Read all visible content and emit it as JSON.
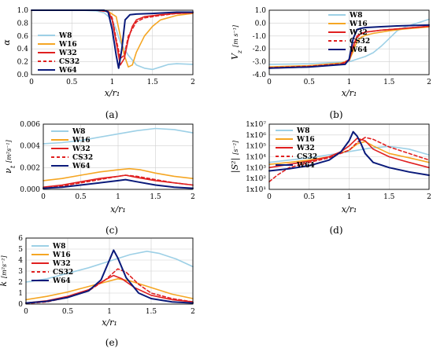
{
  "chart_data": [
    {
      "type": "line",
      "panel_label": "(a)",
      "ylabel": "α",
      "ylabel_unit": "",
      "xlabel": "x/r₁",
      "xlim": [
        0,
        2
      ],
      "ylim": [
        0,
        1.0
      ],
      "yscale": "linear",
      "xticks": [
        0,
        0.5,
        1,
        1.5,
        2
      ],
      "xtick_labels": [
        "0",
        "0.5",
        "1",
        "1.5",
        "2"
      ],
      "yticks": [
        0,
        0.2,
        0.4,
        0.6,
        0.8,
        1.0
      ],
      "ytick_labels": [
        "0.0",
        "0.2",
        "0.4",
        "0.6",
        "0.8",
        "1.0"
      ],
      "grid": true,
      "legend_position": "left",
      "series": [
        {
          "name": "W8",
          "color": "#9dd0e6",
          "dash": "solid",
          "x": [
            0,
            0.6,
            0.8,
            0.9,
            1.0,
            1.05,
            1.1,
            1.2,
            1.3,
            1.4,
            1.5,
            1.6,
            1.7,
            1.8,
            2.0
          ],
          "y": [
            1.0,
            1.0,
            0.99,
            0.96,
            0.85,
            0.7,
            0.5,
            0.3,
            0.15,
            0.1,
            0.08,
            0.12,
            0.16,
            0.17,
            0.16
          ]
        },
        {
          "name": "W16",
          "color": "#f5a623",
          "dash": "solid",
          "x": [
            0,
            0.8,
            0.95,
            1.05,
            1.1,
            1.15,
            1.2,
            1.25,
            1.3,
            1.4,
            1.5,
            1.6,
            1.8,
            2.0
          ],
          "y": [
            1.0,
            1.0,
            0.98,
            0.9,
            0.6,
            0.3,
            0.12,
            0.15,
            0.35,
            0.6,
            0.75,
            0.85,
            0.92,
            0.95
          ]
        },
        {
          "name": "W32",
          "color": "#e02020",
          "dash": "solid",
          "x": [
            0,
            0.8,
            0.95,
            1.0,
            1.05,
            1.1,
            1.15,
            1.2,
            1.25,
            1.3,
            1.4,
            1.6,
            1.8,
            2.0
          ],
          "y": [
            1.0,
            1.0,
            0.98,
            0.85,
            0.5,
            0.15,
            0.25,
            0.55,
            0.75,
            0.85,
            0.9,
            0.93,
            0.95,
            0.96
          ]
        },
        {
          "name": "CS32",
          "color": "#e02020",
          "dash": "dashed",
          "x": [
            0,
            0.8,
            0.95,
            1.0,
            1.05,
            1.1,
            1.15,
            1.2,
            1.3,
            1.4,
            1.6,
            1.8,
            2.0
          ],
          "y": [
            1.0,
            1.0,
            0.98,
            0.88,
            0.55,
            0.25,
            0.3,
            0.6,
            0.82,
            0.88,
            0.92,
            0.95,
            0.96
          ]
        },
        {
          "name": "W64",
          "color": "#0a1a7a",
          "dash": "solid",
          "x": [
            0,
            0.9,
            0.95,
            1.0,
            1.05,
            1.08,
            1.12,
            1.16,
            1.22,
            1.3,
            1.5,
            1.8,
            2.0
          ],
          "y": [
            1.0,
            1.0,
            0.97,
            0.7,
            0.3,
            0.1,
            0.4,
            0.85,
            0.93,
            0.94,
            0.95,
            0.97,
            0.97
          ]
        }
      ]
    },
    {
      "type": "line",
      "panel_label": "(b)",
      "ylabel": "V",
      "ylabel_sub": "z",
      "ylabel_unit": "[m s⁻¹]",
      "xlabel": "x/r₁",
      "xlim": [
        0,
        2
      ],
      "ylim": [
        -4.0,
        1.0
      ],
      "yscale": "linear",
      "xticks": [
        0,
        0.5,
        1,
        1.5,
        2
      ],
      "xtick_labels": [
        "0",
        "0.5",
        "1",
        "1.5",
        "2"
      ],
      "yticks": [
        -4.0,
        -3.0,
        -2.0,
        -1.0,
        0.0,
        1.0
      ],
      "ytick_labels": [
        "-4.0",
        "-3.0",
        "-2.0",
        "-1.0",
        "0.0",
        "1.0"
      ],
      "grid": true,
      "legend_position": "top-right",
      "series": [
        {
          "name": "W8",
          "color": "#9dd0e6",
          "dash": "solid",
          "x": [
            0,
            0.5,
            1.0,
            1.1,
            1.2,
            1.3,
            1.4,
            1.5,
            1.6,
            1.7,
            1.8,
            1.9,
            2.0
          ],
          "y": [
            -3.2,
            -3.15,
            -3.0,
            -2.8,
            -2.6,
            -2.3,
            -1.8,
            -1.2,
            -0.6,
            -0.3,
            -0.1,
            0.1,
            0.3
          ]
        },
        {
          "name": "W16",
          "color": "#f5a623",
          "dash": "solid",
          "x": [
            0,
            0.5,
            0.9,
            1.0,
            1.05,
            1.1,
            1.15,
            1.2,
            1.3,
            1.5,
            1.7,
            2.0
          ],
          "y": [
            -3.4,
            -3.3,
            -3.1,
            -2.9,
            -2.2,
            -1.4,
            -1.1,
            -0.95,
            -0.8,
            -0.6,
            -0.45,
            -0.3
          ]
        },
        {
          "name": "W32",
          "color": "#e02020",
          "dash": "solid",
          "x": [
            0,
            0.5,
            0.9,
            1.0,
            1.05,
            1.1,
            1.15,
            1.2,
            1.4,
            1.6,
            1.8,
            2.0
          ],
          "y": [
            -3.5,
            -3.4,
            -3.2,
            -2.9,
            -1.8,
            -1.0,
            -0.8,
            -0.7,
            -0.55,
            -0.45,
            -0.35,
            -0.25
          ]
        },
        {
          "name": "CS32",
          "color": "#e02020",
          "dash": "dashed",
          "x": [
            0,
            0.5,
            0.9,
            1.0,
            1.05,
            1.1,
            1.15,
            1.2,
            1.4,
            1.6,
            1.8,
            2.0
          ],
          "y": [
            -3.45,
            -3.35,
            -3.15,
            -2.85,
            -1.9,
            -1.1,
            -0.85,
            -0.7,
            -0.55,
            -0.45,
            -0.35,
            -0.25
          ]
        },
        {
          "name": "W64",
          "color": "#0a1a7a",
          "dash": "solid",
          "x": [
            0,
            0.5,
            0.95,
            1.0,
            1.05,
            1.1,
            1.15,
            1.2,
            1.4,
            1.6,
            1.8,
            2.0
          ],
          "y": [
            -3.5,
            -3.4,
            -3.2,
            -2.8,
            -1.2,
            -0.5,
            -0.4,
            -0.35,
            -0.28,
            -0.22,
            -0.18,
            -0.15
          ]
        }
      ]
    },
    {
      "type": "line",
      "panel_label": "(c)",
      "ylabel": "ν",
      "ylabel_sub": "t",
      "ylabel_unit": "[m²s⁻¹]",
      "xlabel": "x/r₁",
      "xlim": [
        0,
        2
      ],
      "ylim": [
        0,
        0.006
      ],
      "yscale": "linear",
      "xticks": [
        0,
        0.5,
        1,
        1.5,
        2
      ],
      "xtick_labels": [
        "0",
        "0.5",
        "1",
        "1.5",
        "2"
      ],
      "yticks": [
        0,
        0.002,
        0.004,
        0.006
      ],
      "ytick_labels": [
        "0.000",
        "0.002",
        "0.004",
        "0.006"
      ],
      "grid": true,
      "legend_position": "left",
      "series": [
        {
          "name": "W8",
          "color": "#9dd0e6",
          "dash": "solid",
          "x": [
            0,
            0.25,
            0.5,
            0.75,
            1.0,
            1.25,
            1.5,
            1.75,
            2.0
          ],
          "y": [
            0.0042,
            0.0043,
            0.0045,
            0.0048,
            0.0051,
            0.0054,
            0.0056,
            0.0055,
            0.0052
          ]
        },
        {
          "name": "W16",
          "color": "#f5a623",
          "dash": "solid",
          "x": [
            0,
            0.25,
            0.5,
            0.75,
            1.0,
            1.15,
            1.3,
            1.5,
            1.75,
            2.0
          ],
          "y": [
            0.0008,
            0.001,
            0.0013,
            0.0016,
            0.0018,
            0.0019,
            0.0018,
            0.0015,
            0.0012,
            0.001
          ]
        },
        {
          "name": "W32",
          "color": "#e02020",
          "dash": "solid",
          "x": [
            0,
            0.25,
            0.5,
            0.75,
            1.0,
            1.1,
            1.25,
            1.5,
            1.75,
            2.0
          ],
          "y": [
            0.0002,
            0.0004,
            0.0007,
            0.001,
            0.0012,
            0.0013,
            0.0011,
            0.0008,
            0.0006,
            0.0004
          ]
        },
        {
          "name": "CS32",
          "color": "#e02020",
          "dash": "dashed",
          "x": [
            0,
            0.25,
            0.5,
            0.75,
            1.0,
            1.1,
            1.25,
            1.5,
            1.75,
            2.0
          ],
          "y": [
            0.0001,
            0.0003,
            0.0006,
            0.0009,
            0.0012,
            0.0013,
            0.0012,
            0.0009,
            0.0006,
            0.0004
          ]
        },
        {
          "name": "W64",
          "color": "#0a1a7a",
          "dash": "solid",
          "x": [
            0,
            0.25,
            0.5,
            0.75,
            1.0,
            1.1,
            1.25,
            1.5,
            1.75,
            2.0
          ],
          "y": [
            0.0001,
            0.0002,
            0.0004,
            0.0006,
            0.0008,
            0.0009,
            0.0007,
            0.0004,
            0.0002,
            0.0001
          ]
        }
      ]
    },
    {
      "type": "line",
      "panel_label": "(d)",
      "ylabel": "|S²|",
      "ylabel_unit": "[s⁻²]",
      "xlabel": "x/r₁",
      "xlim": [
        0,
        2
      ],
      "ylim": [
        10,
        10000000
      ],
      "yscale": "log",
      "xticks": [
        0,
        0.5,
        1,
        1.5,
        2
      ],
      "xtick_labels": [
        "0",
        "0.5",
        "1",
        "1.5",
        "2"
      ],
      "yticks": [
        10,
        100,
        1000,
        10000,
        100000,
        1000000,
        10000000
      ],
      "ytick_labels": [
        "1x10¹",
        "1x10²",
        "1x10³",
        "1x10⁴",
        "1x10⁵",
        "1x10⁶",
        "1x10⁷"
      ],
      "grid": true,
      "legend_position": "top-left",
      "series": [
        {
          "name": "W8",
          "color": "#9dd0e6",
          "dash": "solid",
          "x": [
            0,
            0.25,
            0.5,
            0.75,
            1.0,
            1.25,
            1.5,
            1.75,
            2.0
          ],
          "y": [
            3000,
            5000,
            8000,
            15000,
            30000,
            60000,
            90000,
            50000,
            15000
          ]
        },
        {
          "name": "W16",
          "color": "#f5a623",
          "dash": "solid",
          "x": [
            0,
            0.25,
            0.5,
            0.75,
            1.0,
            1.1,
            1.2,
            1.3,
            1.5,
            1.75,
            2.0
          ],
          "y": [
            2000,
            3000,
            5000,
            10000,
            40000,
            150000,
            250000,
            100000,
            20000,
            8000,
            3000
          ]
        },
        {
          "name": "W32",
          "color": "#e02020",
          "dash": "solid",
          "x": [
            0,
            0.25,
            0.5,
            0.75,
            0.9,
            1.0,
            1.1,
            1.2,
            1.3,
            1.5,
            1.75,
            2.0
          ],
          "y": [
            1000,
            2000,
            4000,
            10000,
            30000,
            100000,
            500000,
            300000,
            50000,
            10000,
            3000,
            1000
          ]
        },
        {
          "name": "CS32",
          "color": "#e02020",
          "dash": "dashed",
          "x": [
            0,
            0.1,
            0.25,
            0.5,
            0.75,
            1.0,
            1.1,
            1.2,
            1.3,
            1.5,
            1.75,
            2.0
          ],
          "y": [
            50,
            200,
            1000,
            3000,
            8000,
            40000,
            200000,
            600000,
            400000,
            80000,
            20000,
            5000
          ]
        },
        {
          "name": "W64",
          "color": "#0a1a7a",
          "dash": "solid",
          "x": [
            0,
            0.25,
            0.5,
            0.75,
            0.9,
            1.0,
            1.05,
            1.1,
            1.15,
            1.2,
            1.3,
            1.5,
            1.75,
            2.0
          ],
          "y": [
            500,
            800,
            1500,
            5000,
            30000,
            300000,
            2000000,
            800000,
            150000,
            20000,
            3000,
            1000,
            400,
            200
          ]
        }
      ]
    },
    {
      "type": "line",
      "panel_label": "(e)",
      "ylabel": "k",
      "ylabel_unit": "[m²s⁻²]",
      "xlabel": "x/r₁",
      "xlim": [
        0,
        2
      ],
      "ylim": [
        0,
        6
      ],
      "yscale": "linear",
      "xticks": [
        0,
        0.5,
        1,
        1.5,
        2
      ],
      "xtick_labels": [
        "0",
        "0.5",
        "1",
        "1.5",
        "2"
      ],
      "yticks": [
        0,
        1,
        2,
        3,
        4,
        5,
        6
      ],
      "ytick_labels": [
        "0",
        "1",
        "2",
        "3",
        "4",
        "5",
        "6"
      ],
      "grid": true,
      "legend_position": "top-left",
      "series": [
        {
          "name": "W8",
          "color": "#9dd0e6",
          "dash": "solid",
          "x": [
            0,
            0.25,
            0.5,
            0.75,
            1.0,
            1.25,
            1.45,
            1.6,
            1.8,
            2.0
          ],
          "y": [
            2.0,
            2.3,
            2.8,
            3.3,
            3.9,
            4.5,
            4.8,
            4.6,
            4.1,
            3.4
          ]
        },
        {
          "name": "W16",
          "color": "#f5a623",
          "dash": "solid",
          "x": [
            0,
            0.25,
            0.5,
            0.75,
            1.0,
            1.1,
            1.25,
            1.5,
            1.75,
            2.0
          ],
          "y": [
            0.4,
            0.7,
            1.1,
            1.6,
            2.1,
            2.3,
            2.1,
            1.5,
            0.9,
            0.5
          ]
        },
        {
          "name": "W32",
          "color": "#e02020",
          "dash": "solid",
          "x": [
            0,
            0.25,
            0.5,
            0.75,
            0.95,
            1.05,
            1.15,
            1.3,
            1.5,
            1.75,
            2.0
          ],
          "y": [
            0.1,
            0.3,
            0.7,
            1.3,
            2.2,
            2.6,
            2.3,
            1.5,
            0.8,
            0.4,
            0.2
          ]
        },
        {
          "name": "CS32",
          "color": "#e02020",
          "dash": "dashed",
          "x": [
            0,
            0.25,
            0.5,
            0.75,
            0.95,
            1.1,
            1.2,
            1.35,
            1.5,
            1.75,
            2.0
          ],
          "y": [
            0.05,
            0.2,
            0.6,
            1.2,
            2.2,
            3.2,
            2.9,
            1.8,
            1.0,
            0.5,
            0.2
          ]
        },
        {
          "name": "W64",
          "color": "#0a1a7a",
          "dash": "solid",
          "x": [
            0,
            0.25,
            0.5,
            0.75,
            0.9,
            1.0,
            1.05,
            1.1,
            1.2,
            1.35,
            1.5,
            1.75,
            2.0
          ],
          "y": [
            0.1,
            0.25,
            0.6,
            1.2,
            2.2,
            4.0,
            4.9,
            4.2,
            2.4,
            1.0,
            0.5,
            0.2,
            0.1
          ]
        }
      ]
    }
  ]
}
